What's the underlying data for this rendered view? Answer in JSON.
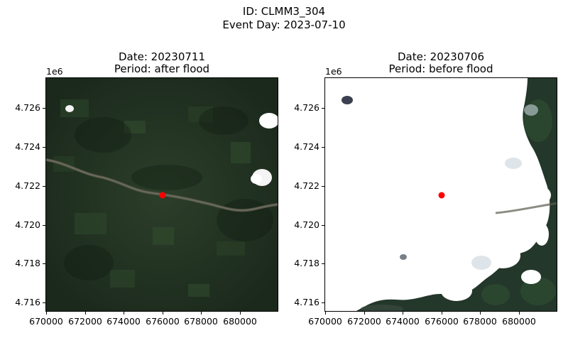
{
  "figure": {
    "id_text": "ID: CLMM3_304",
    "event_text": "Event Day: 2023-07-10"
  },
  "panels": [
    {
      "title_date": "Date: 20230711",
      "title_period": "Period: after flood",
      "y_offset": "1e6",
      "marker_color": "#ff0000"
    },
    {
      "title_date": "Date: 20230706",
      "title_period": "Period: before flood",
      "y_offset": "1e6",
      "marker_color": "#ff0000"
    }
  ],
  "axes": {
    "yticks": [
      "4.726",
      "4.724",
      "4.722",
      "4.720",
      "4.718",
      "4.716"
    ],
    "xticks": [
      "670000",
      "672000",
      "674000",
      "676000",
      "678000",
      "680000"
    ]
  },
  "marker_point": {
    "x": 676000,
    "y": 4721500
  },
  "colors": {
    "forest": "#1e2e1e",
    "cloud": "#ffffff",
    "river": "#5b5b4e",
    "marker": "#ff0000"
  }
}
